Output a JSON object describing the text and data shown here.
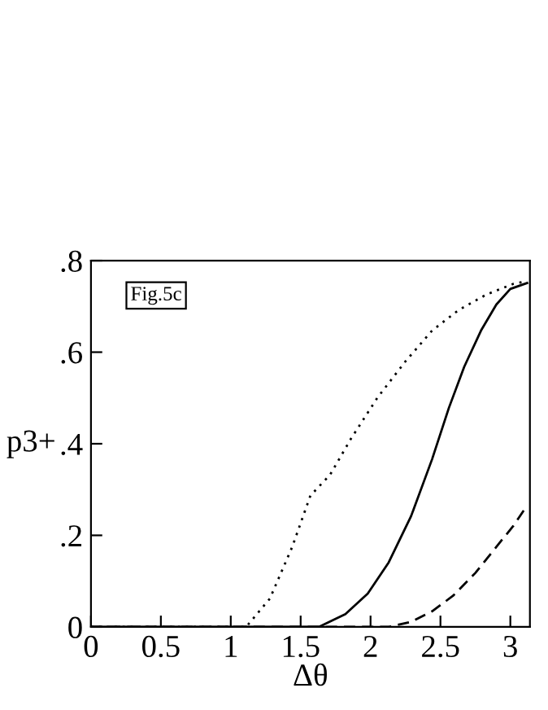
{
  "chart_data": {
    "type": "line",
    "xlabel": "Δθ",
    "ylabel": "p3+",
    "annotations": [
      "Fig.5c"
    ],
    "xlim": [
      0,
      3.14
    ],
    "ylim": [
      0,
      0.8
    ],
    "xticks": [
      0,
      0.5,
      1,
      1.5,
      2,
      2.5,
      3
    ],
    "yticks": [
      {
        "value": 0,
        "label": "0"
      },
      {
        "value": 0.2,
        "label": ".2"
      },
      {
        "value": 0.4,
        "label": ".4"
      },
      {
        "value": 0.6,
        "label": ".6"
      },
      {
        "value": 0.8,
        "label": ".8"
      }
    ],
    "grid": false,
    "legend": false,
    "series": [
      {
        "color": "#000000",
        "line_style": "dotted",
        "x": [
          0,
          1.11,
          1.28,
          1.44,
          1.57,
          1.71,
          1.86,
          2.05,
          2.25,
          2.44,
          2.63,
          2.83,
          3.02,
          3.12
        ],
        "values": [
          0,
          0,
          0.062,
          0.175,
          0.287,
          0.332,
          0.411,
          0.501,
          0.58,
          0.647,
          0.692,
          0.726,
          0.749,
          0.755
        ]
      },
      {
        "color": "#000000",
        "line_style": "solid",
        "x": [
          0,
          1.63,
          1.82,
          1.98,
          2.13,
          2.29,
          2.44,
          2.56,
          2.67,
          2.79,
          2.9,
          3.0,
          3.12
        ],
        "values": [
          0,
          0,
          0.028,
          0.073,
          0.141,
          0.242,
          0.366,
          0.478,
          0.568,
          0.647,
          0.704,
          0.738,
          0.751
        ]
      },
      {
        "color": "#000000",
        "line_style": "dashed",
        "x": [
          0,
          2.13,
          2.29,
          2.44,
          2.59,
          2.75,
          2.9,
          3.02,
          3.12
        ],
        "values": [
          0,
          0,
          0.011,
          0.034,
          0.068,
          0.118,
          0.175,
          0.22,
          0.265
        ]
      }
    ]
  }
}
